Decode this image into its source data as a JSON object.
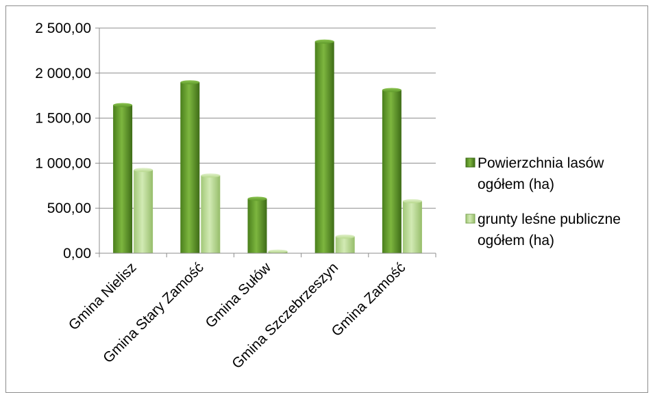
{
  "chart_data": {
    "type": "bar",
    "categories": [
      "Gmina Nielisz",
      "Gmina Stary Zamość",
      "Gmina Sułów",
      "Gmina Szczebrzeszyn",
      "Gmina Zamość"
    ],
    "series": [
      {
        "name": "Powierzchnia lasów ogółem (ha)",
        "legend_lines": [
          "Powierzchnia lasów",
          "ogółem (ha)"
        ],
        "values": [
          1645,
          1898,
          605,
          2350,
          1812
        ],
        "color": "#5f9a2a"
      },
      {
        "name": "grunty leśne publiczne ogółem (ha)",
        "legend_lines": [
          "grunty leśne publiczne",
          "ogółem (ha)"
        ],
        "values": [
          925,
          863,
          22,
          185,
          578
        ],
        "color": "#b7d98c"
      }
    ],
    "yticks": [
      "0,00",
      "500,00",
      "1 000,00",
      "1 500,00",
      "2 000,00",
      "2 500,00"
    ],
    "ylim": [
      0,
      2500
    ],
    "grid": true,
    "legend_position": "right",
    "title": "",
    "xlabel": "",
    "ylabel": ""
  }
}
